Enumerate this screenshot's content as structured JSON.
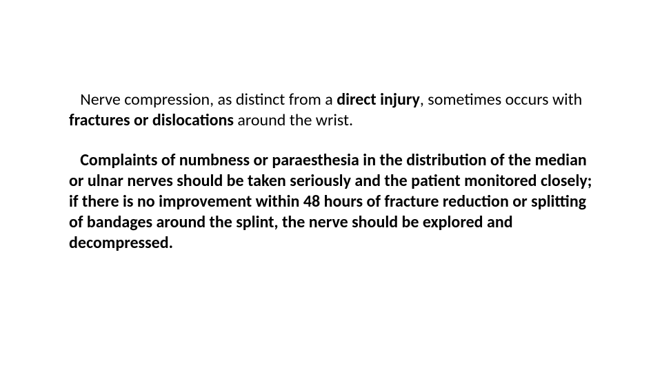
{
  "slide": {
    "background_color": "#ffffff",
    "text_color": "#000000",
    "font_family": "Calibri",
    "font_size_pt": 24,
    "line_height": 1.25,
    "paragraphs": [
      {
        "runs": [
          {
            "text": " Nerve compression, as distinct from a ",
            "bold": false
          },
          {
            "text": "direct injury",
            "bold": true
          },
          {
            "text": ", sometimes occurs with ",
            "bold": false
          },
          {
            "text": "fractures or dislocations ",
            "bold": true
          },
          {
            "text": "around the wrist.",
            "bold": false
          }
        ]
      },
      {
        "runs": [
          {
            "text": " Complaints of numbness or paraesthesia in the distribution of the median or ulnar nerves should be taken seriously and the patient monitored closely; if there is no improvement within 48 hours of fracture reduction or splitting of bandages around the splint, the nerve should be explored and decompressed.",
            "bold": true
          }
        ]
      }
    ]
  }
}
